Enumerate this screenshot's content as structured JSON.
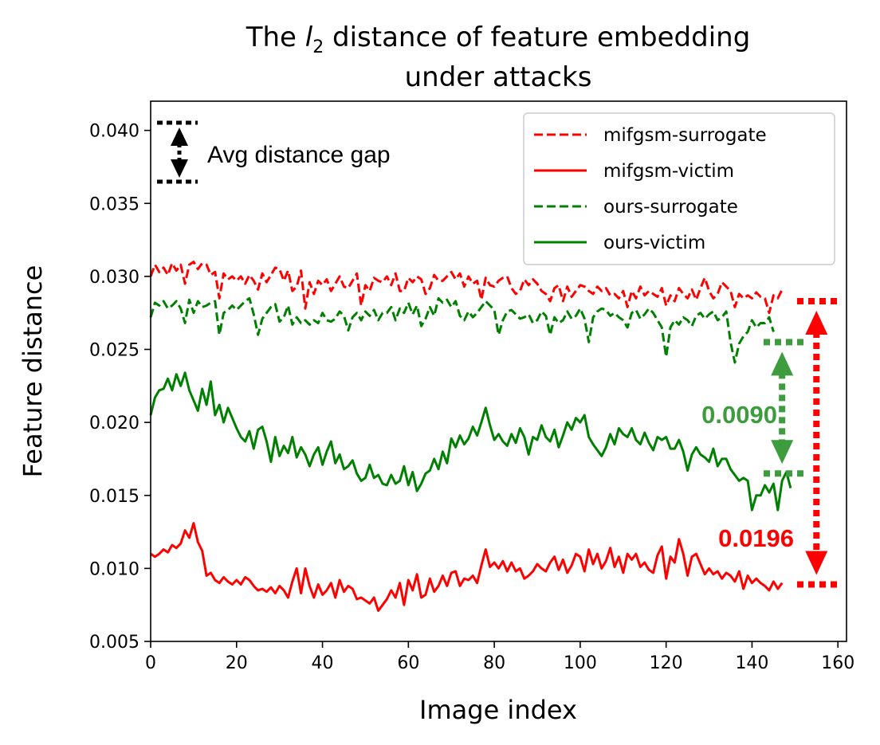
{
  "chart_data": {
    "type": "line",
    "title_parts": [
      "The ",
      "l",
      "2",
      " distance of feature embedding"
    ],
    "title_line2": "under attacks",
    "xlabel": "Image index",
    "ylabel": "Feature distance",
    "xlim": [
      0,
      162
    ],
    "ylim": [
      0.005,
      0.042
    ],
    "xticks": [
      0,
      20,
      40,
      60,
      80,
      100,
      120,
      140,
      160
    ],
    "xtick_labels": [
      "0",
      "20",
      "40",
      "60",
      "80",
      "100",
      "120",
      "140",
      "160"
    ],
    "yticks": [
      0.005,
      0.01,
      0.015,
      0.02,
      0.025,
      0.03,
      0.035,
      0.04
    ],
    "ytick_labels": [
      "0.005",
      "0.010",
      "0.015",
      "0.020",
      "0.025",
      "0.030",
      "0.035",
      "0.040"
    ],
    "legend_position": "top-right",
    "series": [
      {
        "name": "mifgsm-surrogate",
        "color": "#ff0000",
        "dash": "dashed",
        "values": [
          0.03,
          0.0308,
          0.0303,
          0.0306,
          0.0301,
          0.0309,
          0.0304,
          0.0308,
          0.0295,
          0.0308,
          0.031,
          0.0305,
          0.0309,
          0.0308,
          0.0301,
          0.0303,
          0.0285,
          0.0302,
          0.0298,
          0.03,
          0.0297,
          0.03,
          0.0295,
          0.0301,
          0.0297,
          0.0291,
          0.0302,
          0.0296,
          0.0301,
          0.0306,
          0.0305,
          0.0297,
          0.0304,
          0.029,
          0.0293,
          0.0304,
          0.0278,
          0.0296,
          0.0288,
          0.0297,
          0.0294,
          0.0298,
          0.029,
          0.0295,
          0.03,
          0.0293,
          0.0292,
          0.0297,
          0.0302,
          0.028,
          0.0294,
          0.029,
          0.0299,
          0.0297,
          0.0296,
          0.03,
          0.0294,
          0.0302,
          0.029,
          0.029,
          0.0299,
          0.0296,
          0.03,
          0.0298,
          0.0288,
          0.0292,
          0.0301,
          0.0297,
          0.0297,
          0.03,
          0.0303,
          0.0298,
          0.0302,
          0.0293,
          0.03,
          0.0295,
          0.0297,
          0.0284,
          0.0299,
          0.0294,
          0.0293,
          0.0297,
          0.0299,
          0.03,
          0.0292,
          0.0288,
          0.029,
          0.0298,
          0.0294,
          0.0298,
          0.0295,
          0.029,
          0.0288,
          0.0283,
          0.0292,
          0.0294,
          0.0283,
          0.0293,
          0.0286,
          0.029,
          0.0294,
          0.0293,
          0.029,
          0.0288,
          0.0293,
          0.029,
          0.0292,
          0.0287,
          0.0288,
          0.0285,
          0.029,
          0.0279,
          0.029,
          0.0285,
          0.0293,
          0.0287,
          0.029,
          0.0288,
          0.0286,
          0.0292,
          0.028,
          0.0287,
          0.0283,
          0.0292,
          0.0288,
          0.0285,
          0.0291,
          0.0284,
          0.0292,
          0.0299,
          0.029,
          0.0285,
          0.0288,
          0.0296,
          0.0293,
          0.029,
          0.0279,
          0.0288,
          0.0285,
          0.0287,
          0.0285,
          0.0289,
          0.0286,
          0.0285,
          0.0275,
          0.0287,
          0.0285,
          0.0291
        ]
      },
      {
        "name": "mifgsm-victim",
        "color": "#ff0000",
        "dash": "solid",
        "values": [
          0.011,
          0.0108,
          0.011,
          0.0113,
          0.0111,
          0.0116,
          0.0114,
          0.0117,
          0.0126,
          0.0121,
          0.0131,
          0.0118,
          0.0112,
          0.0095,
          0.0097,
          0.0092,
          0.009,
          0.0094,
          0.0091,
          0.0089,
          0.0092,
          0.0089,
          0.0094,
          0.0092,
          0.0088,
          0.0085,
          0.0086,
          0.0084,
          0.0087,
          0.0083,
          0.0088,
          0.0085,
          0.008,
          0.0091,
          0.01,
          0.0083,
          0.01,
          0.0088,
          0.008,
          0.0089,
          0.0082,
          0.0085,
          0.009,
          0.008,
          0.0092,
          0.0084,
          0.0088,
          0.0086,
          0.0079,
          0.008,
          0.0078,
          0.0076,
          0.008,
          0.0071,
          0.0075,
          0.0079,
          0.0085,
          0.008,
          0.009,
          0.0075,
          0.0092,
          0.0085,
          0.0096,
          0.008,
          0.0082,
          0.0093,
          0.0084,
          0.0088,
          0.0095,
          0.0088,
          0.0097,
          0.0098,
          0.0088,
          0.0093,
          0.0092,
          0.0095,
          0.009,
          0.0102,
          0.0113,
          0.0101,
          0.0104,
          0.01,
          0.0105,
          0.0098,
          0.0104,
          0.0098,
          0.01,
          0.0093,
          0.0095,
          0.0098,
          0.0103,
          0.01,
          0.0098,
          0.0104,
          0.0108,
          0.0099,
          0.0106,
          0.0097,
          0.0102,
          0.011,
          0.0108,
          0.0098,
          0.0113,
          0.0103,
          0.011,
          0.01,
          0.0105,
          0.0114,
          0.0101,
          0.0108,
          0.0097,
          0.011,
          0.0106,
          0.011,
          0.0101,
          0.0104,
          0.0099,
          0.0097,
          0.0109,
          0.0115,
          0.0093,
          0.0108,
          0.0104,
          0.012,
          0.011,
          0.0095,
          0.0108,
          0.011,
          0.0103,
          0.0096,
          0.01,
          0.0096,
          0.0098,
          0.0093,
          0.0097,
          0.0095,
          0.0091,
          0.0098,
          0.0086,
          0.0095,
          0.009,
          0.0093,
          0.009,
          0.0088,
          0.0085,
          0.0091,
          0.0086,
          0.009
        ]
      },
      {
        "name": "ours-surrogate",
        "color": "#008000",
        "dash": "dashed",
        "values": [
          0.0272,
          0.0282,
          0.028,
          0.0283,
          0.0278,
          0.028,
          0.0283,
          0.0278,
          0.0268,
          0.0284,
          0.0275,
          0.0283,
          0.0279,
          0.028,
          0.0282,
          0.0283,
          0.026,
          0.0275,
          0.0277,
          0.028,
          0.0277,
          0.028,
          0.0283,
          0.0285,
          0.0274,
          0.026,
          0.0271,
          0.0275,
          0.0279,
          0.0281,
          0.0269,
          0.0272,
          0.028,
          0.0267,
          0.0272,
          0.0268,
          0.027,
          0.0267,
          0.027,
          0.0268,
          0.0275,
          0.027,
          0.0269,
          0.0271,
          0.0276,
          0.0273,
          0.0263,
          0.0272,
          0.0275,
          0.027,
          0.0276,
          0.0273,
          0.0277,
          0.027,
          0.0275,
          0.0275,
          0.0279,
          0.027,
          0.0278,
          0.0275,
          0.0282,
          0.0274,
          0.028,
          0.0266,
          0.0271,
          0.0279,
          0.0273,
          0.0285,
          0.0282,
          0.0284,
          0.0279,
          0.0283,
          0.0273,
          0.027,
          0.0276,
          0.0272,
          0.0275,
          0.0279,
          0.0283,
          0.028,
          0.0277,
          0.026,
          0.027,
          0.0276,
          0.0277,
          0.0274,
          0.0271,
          0.0272,
          0.0274,
          0.0268,
          0.027,
          0.0276,
          0.0273,
          0.026,
          0.0272,
          0.0268,
          0.027,
          0.0276,
          0.0271,
          0.0273,
          0.0278,
          0.0271,
          0.0255,
          0.0272,
          0.0276,
          0.0278,
          0.0277,
          0.0273,
          0.0275,
          0.0272,
          0.027,
          0.0265,
          0.0275,
          0.0277,
          0.0271,
          0.0274,
          0.0278,
          0.0275,
          0.027,
          0.0265,
          0.0245,
          0.0265,
          0.027,
          0.0267,
          0.0272,
          0.027,
          0.0266,
          0.0273,
          0.0275,
          0.0271,
          0.0274,
          0.0276,
          0.027,
          0.0272,
          0.0276,
          0.0255,
          0.0241,
          0.0254,
          0.0259,
          0.0262,
          0.027,
          0.0265,
          0.0268,
          0.0268,
          0.0272,
          0.0262
        ]
      },
      {
        "name": "ours-victim",
        "color": "#008000",
        "dash": "solid",
        "values": [
          0.0205,
          0.0217,
          0.0222,
          0.0223,
          0.023,
          0.0222,
          0.0233,
          0.0225,
          0.0234,
          0.0222,
          0.0215,
          0.0208,
          0.0223,
          0.0212,
          0.0228,
          0.0205,
          0.0212,
          0.02,
          0.021,
          0.0203,
          0.0196,
          0.019,
          0.0187,
          0.0194,
          0.0182,
          0.0195,
          0.0197,
          0.0187,
          0.0173,
          0.019,
          0.0177,
          0.0184,
          0.0179,
          0.019,
          0.0176,
          0.0183,
          0.0178,
          0.017,
          0.0178,
          0.0183,
          0.0171,
          0.018,
          0.0187,
          0.0172,
          0.0178,
          0.0168,
          0.017,
          0.0174,
          0.0165,
          0.016,
          0.0162,
          0.0171,
          0.0162,
          0.0164,
          0.0158,
          0.0157,
          0.0164,
          0.0158,
          0.016,
          0.017,
          0.0157,
          0.0166,
          0.0153,
          0.0158,
          0.0165,
          0.0167,
          0.0175,
          0.0168,
          0.018,
          0.0172,
          0.0189,
          0.0183,
          0.0191,
          0.0185,
          0.0189,
          0.0197,
          0.0191,
          0.02,
          0.021,
          0.0198,
          0.0188,
          0.0192,
          0.0187,
          0.0184,
          0.0192,
          0.0186,
          0.0196,
          0.019,
          0.0178,
          0.019,
          0.0188,
          0.0198,
          0.019,
          0.0187,
          0.0195,
          0.0183,
          0.0191,
          0.02,
          0.0195,
          0.0203,
          0.02,
          0.0205,
          0.019,
          0.0185,
          0.0181,
          0.0177,
          0.0183,
          0.0192,
          0.0185,
          0.0196,
          0.0192,
          0.019,
          0.0196,
          0.0188,
          0.0185,
          0.0193,
          0.0186,
          0.0181,
          0.019,
          0.0188,
          0.019,
          0.0182,
          0.0182,
          0.0188,
          0.018,
          0.0167,
          0.0178,
          0.0183,
          0.0178,
          0.0176,
          0.0173,
          0.0182,
          0.017,
          0.0175,
          0.0175,
          0.0168,
          0.0164,
          0.016,
          0.0162,
          0.016,
          0.014,
          0.015,
          0.015,
          0.0157,
          0.0152,
          0.0158,
          0.014,
          0.016,
          0.0166,
          0.0155
        ]
      }
    ],
    "annotations": {
      "key_label": "Avg distance gap",
      "green_gap": {
        "label": "0.0090",
        "color": "#3d9c3d",
        "x": 147,
        "y_top": 0.0255,
        "y_bottom": 0.0165
      },
      "red_gap": {
        "label": "0.0196",
        "color": "#ff0000",
        "x": 155,
        "y_top": 0.0283,
        "y_bottom": 0.0089
      }
    }
  }
}
